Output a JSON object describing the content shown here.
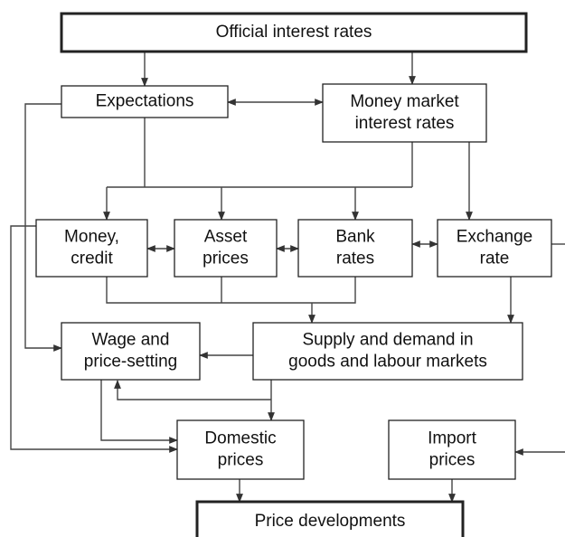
{
  "nodes": [
    {
      "lines": [
        "Official interest rates"
      ]
    },
    {
      "lines": [
        "Expectations"
      ]
    },
    {
      "lines": [
        "Money market",
        "interest rates"
      ]
    },
    {
      "lines": [
        "Money,",
        "credit"
      ]
    },
    {
      "lines": [
        "Asset",
        "prices"
      ]
    },
    {
      "lines": [
        "Bank",
        "rates"
      ]
    },
    {
      "lines": [
        "Exchange",
        "rate"
      ]
    },
    {
      "lines": [
        "Wage and",
        "price-setting"
      ]
    },
    {
      "lines": [
        "Supply and demand in",
        "goods and labour markets"
      ]
    },
    {
      "lines": [
        "Domestic",
        "prices"
      ]
    },
    {
      "lines": [
        "Import",
        "prices"
      ]
    },
    {
      "lines": [
        "Price developments"
      ]
    }
  ]
}
